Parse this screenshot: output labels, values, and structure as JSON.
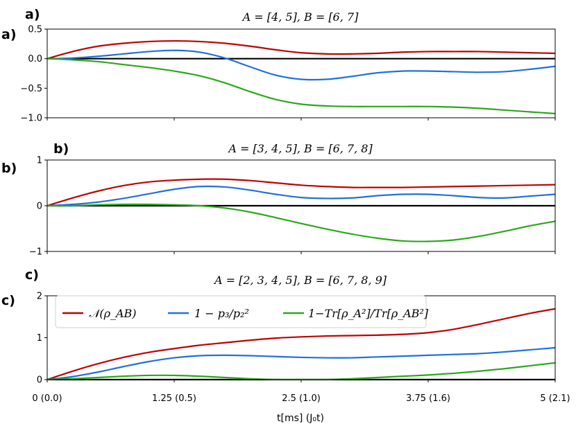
{
  "figure": {
    "xlabel": "t[ms] (J₀t)",
    "x_ticks": [
      "0 (0.0)",
      "1.25 (0.5)",
      "2.5 (1.0)",
      "3.75 (1.6)",
      "5 (2.1)"
    ]
  },
  "legend": [
    {
      "label": "𝒩(ρ_AB)",
      "color": "#c00000"
    },
    {
      "label": "1 − p₃/p₂²",
      "color": "#1f6fe0"
    },
    {
      "label": "1−Tr[ρ_A²]/Tr[ρ_AB²]",
      "color": "#2aa81a"
    }
  ],
  "chart_data": [
    {
      "type": "line",
      "panel_tag": "a)",
      "side_tag": "a)",
      "title": "A = [4, 5], B = [6, 7]",
      "xlabel": "t[ms] (J₀t)",
      "xlim": [
        0,
        5
      ],
      "ylim": [
        -1.0,
        0.5
      ],
      "y_ticks": [
        {
          "v": 0.5,
          "label": "0.5"
        },
        {
          "v": 0.0,
          "label": "0.0"
        },
        {
          "v": -0.5,
          "label": "−0.5"
        },
        {
          "v": -1.0,
          "label": "−1.0"
        }
      ],
      "x": [
        0,
        0.25,
        0.5,
        0.75,
        1.0,
        1.25,
        1.5,
        1.75,
        2.0,
        2.25,
        2.5,
        2.75,
        3.0,
        3.25,
        3.5,
        3.75,
        4.0,
        4.25,
        4.5,
        4.75,
        5.0
      ],
      "series": [
        {
          "name": "𝒩(ρ_AB)",
          "color": "#c00000",
          "values": [
            0,
            0.12,
            0.21,
            0.26,
            0.29,
            0.3,
            0.29,
            0.26,
            0.21,
            0.15,
            0.1,
            0.08,
            0.08,
            0.09,
            0.11,
            0.12,
            0.12,
            0.12,
            0.11,
            0.1,
            0.09
          ]
        },
        {
          "name": "1 − p₃/p₂²",
          "color": "#1f6fe0",
          "values": [
            0,
            0.01,
            0.04,
            0.08,
            0.12,
            0.14,
            0.11,
            0.01,
            -0.14,
            -0.28,
            -0.35,
            -0.35,
            -0.3,
            -0.24,
            -0.21,
            -0.21,
            -0.22,
            -0.23,
            -0.22,
            -0.18,
            -0.13
          ]
        },
        {
          "name": "1−Tr[ρ_A²]/Tr[ρ_AB²]",
          "color": "#2aa81a",
          "values": [
            0,
            -0.02,
            -0.05,
            -0.1,
            -0.15,
            -0.21,
            -0.29,
            -0.41,
            -0.56,
            -0.69,
            -0.77,
            -0.8,
            -0.81,
            -0.81,
            -0.81,
            -0.81,
            -0.82,
            -0.84,
            -0.87,
            -0.9,
            -0.93
          ]
        }
      ]
    },
    {
      "type": "line",
      "panel_tag": "b)",
      "side_tag": "b)",
      "title": "A = [3, 4, 5], B = [6, 7, 8]",
      "xlabel": "t[ms] (J₀t)",
      "xlim": [
        0,
        5
      ],
      "ylim": [
        -1,
        1
      ],
      "y_ticks": [
        {
          "v": 1,
          "label": "1"
        },
        {
          "v": 0,
          "label": "0"
        },
        {
          "v": -1,
          "label": "−1"
        }
      ],
      "x": [
        0,
        0.25,
        0.5,
        0.75,
        1.0,
        1.25,
        1.5,
        1.75,
        2.0,
        2.25,
        2.5,
        2.75,
        3.0,
        3.25,
        3.5,
        3.75,
        4.0,
        4.25,
        4.5,
        4.75,
        5.0
      ],
      "series": [
        {
          "name": "𝒩(ρ_AB)",
          "color": "#c00000",
          "values": [
            0,
            0.17,
            0.32,
            0.44,
            0.52,
            0.56,
            0.58,
            0.58,
            0.55,
            0.5,
            0.45,
            0.42,
            0.4,
            0.4,
            0.4,
            0.41,
            0.42,
            0.43,
            0.44,
            0.45,
            0.46
          ]
        },
        {
          "name": "1 − p₃/p₂²",
          "color": "#1f6fe0",
          "values": [
            0,
            0.03,
            0.08,
            0.16,
            0.26,
            0.36,
            0.42,
            0.41,
            0.34,
            0.25,
            0.18,
            0.16,
            0.17,
            0.22,
            0.25,
            0.25,
            0.22,
            0.18,
            0.17,
            0.21,
            0.25
          ]
        },
        {
          "name": "1−Tr[ρ_A²]/Tr[ρ_AB²]",
          "color": "#2aa81a",
          "values": [
            0,
            0.0,
            0.02,
            0.03,
            0.03,
            0.02,
            0.0,
            -0.05,
            -0.14,
            -0.26,
            -0.39,
            -0.51,
            -0.62,
            -0.71,
            -0.77,
            -0.78,
            -0.75,
            -0.67,
            -0.56,
            -0.44,
            -0.34
          ]
        }
      ]
    },
    {
      "type": "line",
      "panel_tag": "c)",
      "side_tag": "c)",
      "title": "A = [2, 3, 4, 5], B = [6, 7, 8, 9]",
      "xlabel": "t[ms] (J₀t)",
      "xlim": [
        0,
        5
      ],
      "ylim": [
        0,
        2
      ],
      "y_ticks": [
        {
          "v": 2,
          "label": "2"
        },
        {
          "v": 1,
          "label": "1"
        },
        {
          "v": 0,
          "label": "0"
        }
      ],
      "legend_position": "top-left",
      "x": [
        0,
        0.25,
        0.5,
        0.75,
        1.0,
        1.25,
        1.5,
        1.75,
        2.0,
        2.25,
        2.5,
        2.75,
        3.0,
        3.25,
        3.5,
        3.75,
        4.0,
        4.25,
        4.5,
        4.75,
        5.0
      ],
      "series": [
        {
          "name": "𝒩(ρ_AB)",
          "color": "#c00000",
          "values": [
            0,
            0.2,
            0.38,
            0.53,
            0.65,
            0.74,
            0.82,
            0.88,
            0.94,
            0.99,
            1.02,
            1.04,
            1.05,
            1.06,
            1.08,
            1.12,
            1.2,
            1.32,
            1.45,
            1.58,
            1.69
          ]
        },
        {
          "name": "1 − p₃/p₂²",
          "color": "#1f6fe0",
          "values": [
            0,
            0.07,
            0.18,
            0.31,
            0.43,
            0.52,
            0.57,
            0.58,
            0.57,
            0.55,
            0.53,
            0.52,
            0.52,
            0.54,
            0.56,
            0.58,
            0.6,
            0.62,
            0.66,
            0.71,
            0.76
          ]
        },
        {
          "name": "1−Tr[ρ_A²]/Tr[ρ_AB²]",
          "color": "#2aa81a",
          "values": [
            0,
            0.02,
            0.05,
            0.08,
            0.1,
            0.1,
            0.08,
            0.05,
            0.02,
            0.0,
            0.0,
            0.0,
            0.02,
            0.05,
            0.08,
            0.11,
            0.15,
            0.2,
            0.26,
            0.33,
            0.4
          ]
        }
      ]
    }
  ]
}
